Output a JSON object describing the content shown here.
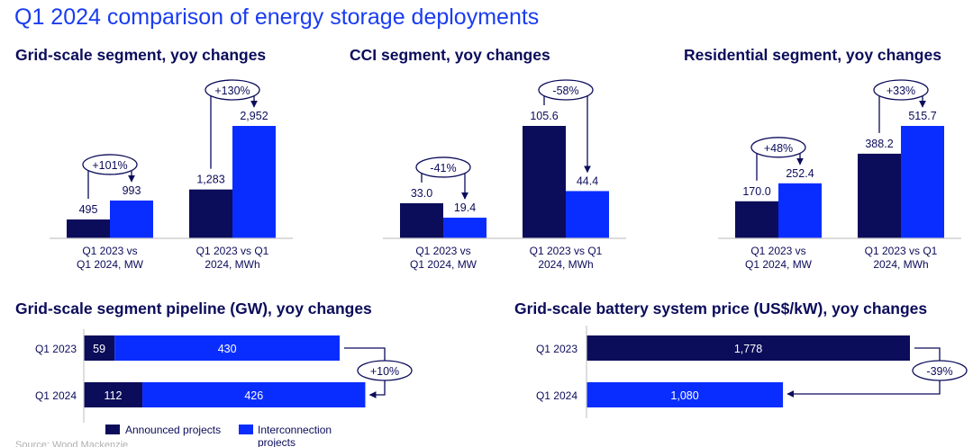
{
  "title": "Q1 2024 comparison of energy storage deployments",
  "source": "Source: Wood Mackenzie",
  "colors": {
    "q1_2023": "#0b0c5a",
    "q1_2024": "#0a2dff",
    "title": "#1a3cf0",
    "axis": "#c8c8c8"
  },
  "chart_data": [
    {
      "type": "bar",
      "title": "Grid-scale segment, yoy changes",
      "categories": [
        [
          "Q1 2023 vs",
          "Q1 2024, MW"
        ],
        [
          "Q1 2023 vs Q1",
          "2024, MWh"
        ]
      ],
      "series": [
        {
          "values": [
            495,
            1283
          ]
        },
        {
          "values": [
            993,
            2952
          ]
        }
      ],
      "value_labels": [
        [
          "495",
          "1,283"
        ],
        [
          "993",
          "2,952"
        ]
      ],
      "changes": [
        "+101%",
        "+130%"
      ]
    },
    {
      "type": "bar",
      "title": "CCI segment, yoy changes",
      "categories": [
        [
          "Q1 2023 vs",
          "Q1 2024, MW"
        ],
        [
          "Q1 2023 vs Q1",
          "2024, MWh"
        ]
      ],
      "series": [
        {
          "values": [
            33.0,
            105.6
          ]
        },
        {
          "values": [
            19.4,
            44.4
          ]
        }
      ],
      "value_labels": [
        [
          "33.0",
          "105.6"
        ],
        [
          "19.4",
          "44.4"
        ]
      ],
      "changes": [
        "-41%",
        "-58%"
      ]
    },
    {
      "type": "bar",
      "title": "Residential segment, yoy changes",
      "categories": [
        [
          "Q1 2023 vs",
          "Q1 2024, MW"
        ],
        [
          "Q1 2023 vs Q1",
          "2024, MWh"
        ]
      ],
      "series": [
        {
          "values": [
            170.0,
            388.2
          ]
        },
        {
          "values": [
            252.4,
            515.7
          ]
        }
      ],
      "value_labels": [
        [
          "170.0",
          "388.2"
        ],
        [
          "252.4",
          "515.7"
        ]
      ],
      "changes": [
        "+48%",
        "+33%"
      ]
    },
    {
      "type": "bar",
      "orientation": "horizontal-stacked",
      "title": "Grid-scale segment pipeline (GW), yoy changes",
      "categories": [
        "Q1 2023",
        "Q1 2024"
      ],
      "series": [
        {
          "name": "Announced projects",
          "values": [
            59,
            112
          ]
        },
        {
          "name": "Interconnection projects",
          "values": [
            430,
            426
          ]
        }
      ],
      "change": "+10%",
      "legend": "bottom"
    },
    {
      "type": "bar",
      "orientation": "horizontal",
      "title": "Grid-scale battery system price (US$/kW), yoy changes",
      "categories": [
        "Q1 2023",
        "Q1 2024"
      ],
      "values": [
        1778,
        1080
      ],
      "value_labels": [
        "1,778",
        "1,080"
      ],
      "change": "-39%"
    }
  ]
}
